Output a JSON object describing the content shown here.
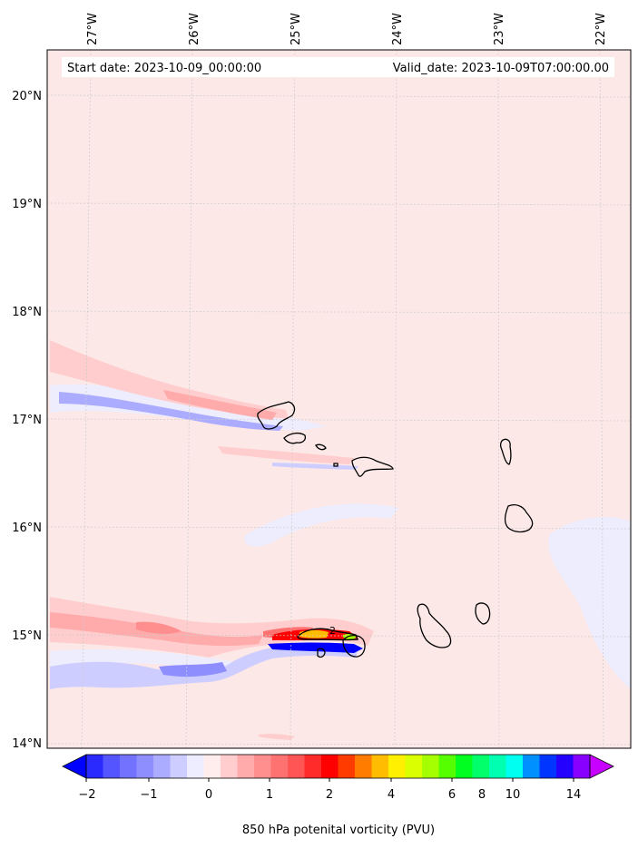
{
  "header": {
    "start_date": "Start date: 2023-10-09_00:00:00",
    "valid_date": "Valid_date: 2023-10-09T07:00:00.00"
  },
  "map": {
    "lon_labels": [
      "27°W",
      "26°W",
      "25°W",
      "24°W",
      "23°W",
      "22°W"
    ],
    "lat_labels": [
      "20°N",
      "19°N",
      "18°N",
      "17°N",
      "16°N",
      "15°N",
      "14°N"
    ],
    "contour_label": "2",
    "colors": {
      "background_positive": "#fde8e8",
      "weak_negative": "#ededfd"
    }
  },
  "colorbar": {
    "tick_labels": [
      "−2",
      "−1",
      "0",
      "1",
      "2",
      "4",
      "6",
      "8",
      "10",
      "14"
    ],
    "label": "850 hPa potenital vorticity (PVU)",
    "colors": [
      "#0000ff",
      "#2a2aff",
      "#5555ff",
      "#7272ff",
      "#8e8eff",
      "#ababff",
      "#cdcdff",
      "#ededff",
      "#ffeded",
      "#ffcdcd",
      "#ffabab",
      "#ff8e8e",
      "#ff7272",
      "#ff5555",
      "#ff2a2a",
      "#ff0000",
      "#ff3b00",
      "#ff7c00",
      "#ffbc00",
      "#ffef00",
      "#d9ff00",
      "#a6ff00",
      "#56ff00",
      "#00ff20",
      "#00ff6a",
      "#00ffb0",
      "#00fff0",
      "#0090ff",
      "#0035ff",
      "#2400ff",
      "#8800ff",
      "#c800ff"
    ]
  }
}
